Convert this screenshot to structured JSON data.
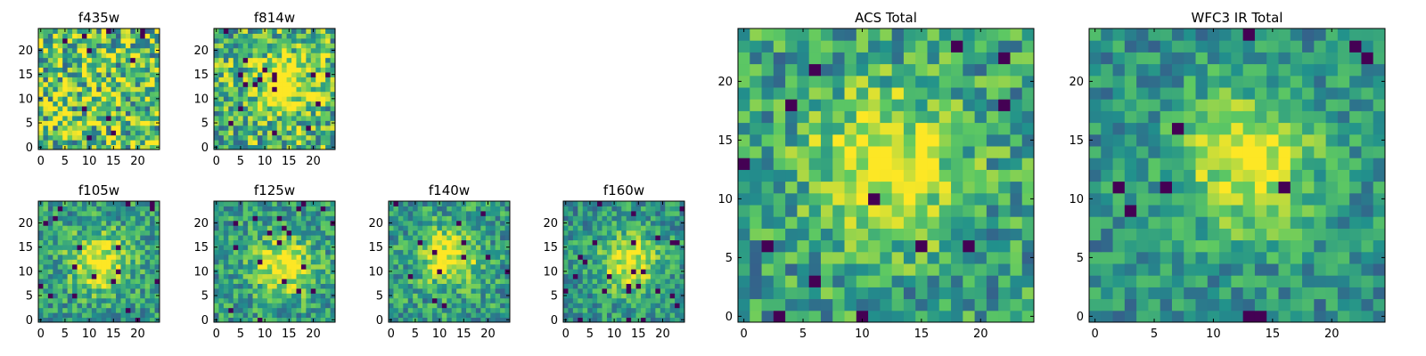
{
  "colormap": [
    "#440154",
    "#3b528b",
    "#21918c",
    "#5ec962",
    "#fde725"
  ],
  "chart_data": [
    {
      "type": "heatmap",
      "title": "f435w",
      "grid_size": 25,
      "xlim": [
        -0.5,
        24.5
      ],
      "ylim": [
        -0.5,
        24.5
      ],
      "xticks": [
        0,
        5,
        10,
        15,
        20
      ],
      "yticks": [
        0,
        5,
        10,
        15,
        20
      ],
      "peak": null,
      "noise": 0.95,
      "seed": 11
    },
    {
      "type": "heatmap",
      "title": "f814w",
      "grid_size": 25,
      "xlim": [
        -0.5,
        24.5
      ],
      "ylim": [
        -0.5,
        24.5
      ],
      "xticks": [
        0,
        5,
        10,
        15,
        20
      ],
      "yticks": [
        0,
        5,
        10,
        15,
        20
      ],
      "peak": [
        14,
        13
      ],
      "noise": 0.8,
      "seed": 23
    },
    {
      "type": "heatmap",
      "title": "f105w",
      "grid_size": 25,
      "xlim": [
        -0.5,
        24.5
      ],
      "ylim": [
        -0.5,
        24.5
      ],
      "xticks": [
        0,
        5,
        10,
        15,
        20
      ],
      "yticks": [
        0,
        5,
        10,
        15,
        20
      ],
      "peak": [
        12,
        12
      ],
      "noise": 0.55,
      "seed": 37
    },
    {
      "type": "heatmap",
      "title": "f125w",
      "grid_size": 25,
      "xlim": [
        -0.5,
        24.5
      ],
      "ylim": [
        -0.5,
        24.5
      ],
      "xticks": [
        0,
        5,
        10,
        15,
        20
      ],
      "yticks": [
        0,
        5,
        10,
        15,
        20
      ],
      "peak": [
        14,
        11
      ],
      "noise": 0.55,
      "seed": 41
    },
    {
      "type": "heatmap",
      "title": "f140w",
      "grid_size": 25,
      "xlim": [
        -0.5,
        24.5
      ],
      "ylim": [
        -0.5,
        24.5
      ],
      "xticks": [
        0,
        5,
        10,
        15,
        20
      ],
      "yticks": [
        0,
        5,
        10,
        15,
        20
      ],
      "peak": [
        12,
        13
      ],
      "noise": 0.55,
      "seed": 53
    },
    {
      "type": "heatmap",
      "title": "f160w",
      "grid_size": 25,
      "xlim": [
        -0.5,
        24.5
      ],
      "ylim": [
        -0.5,
        24.5
      ],
      "xticks": [
        0,
        5,
        10,
        15,
        20
      ],
      "yticks": [
        0,
        5,
        10,
        15,
        20
      ],
      "peak": [
        13,
        12
      ],
      "noise": 0.5,
      "seed": 67
    },
    {
      "type": "heatmap",
      "title": "ACS Total",
      "grid_size": 25,
      "xlim": [
        -0.5,
        24.5
      ],
      "ylim": [
        -0.5,
        24.5
      ],
      "xticks": [
        0,
        5,
        10,
        15,
        20
      ],
      "yticks": [
        0,
        5,
        10,
        15,
        20
      ],
      "peak": [
        12,
        13
      ],
      "noise": 0.6,
      "seed": 79
    },
    {
      "type": "heatmap",
      "title": "WFC3 IR Total",
      "grid_size": 25,
      "xlim": [
        -0.5,
        24.5
      ],
      "ylim": [
        -0.5,
        24.5
      ],
      "xticks": [
        0,
        5,
        10,
        15,
        20
      ],
      "yticks": [
        0,
        5,
        10,
        15,
        20
      ],
      "peak": [
        13,
        13
      ],
      "noise": 0.45,
      "seed": 97
    }
  ]
}
